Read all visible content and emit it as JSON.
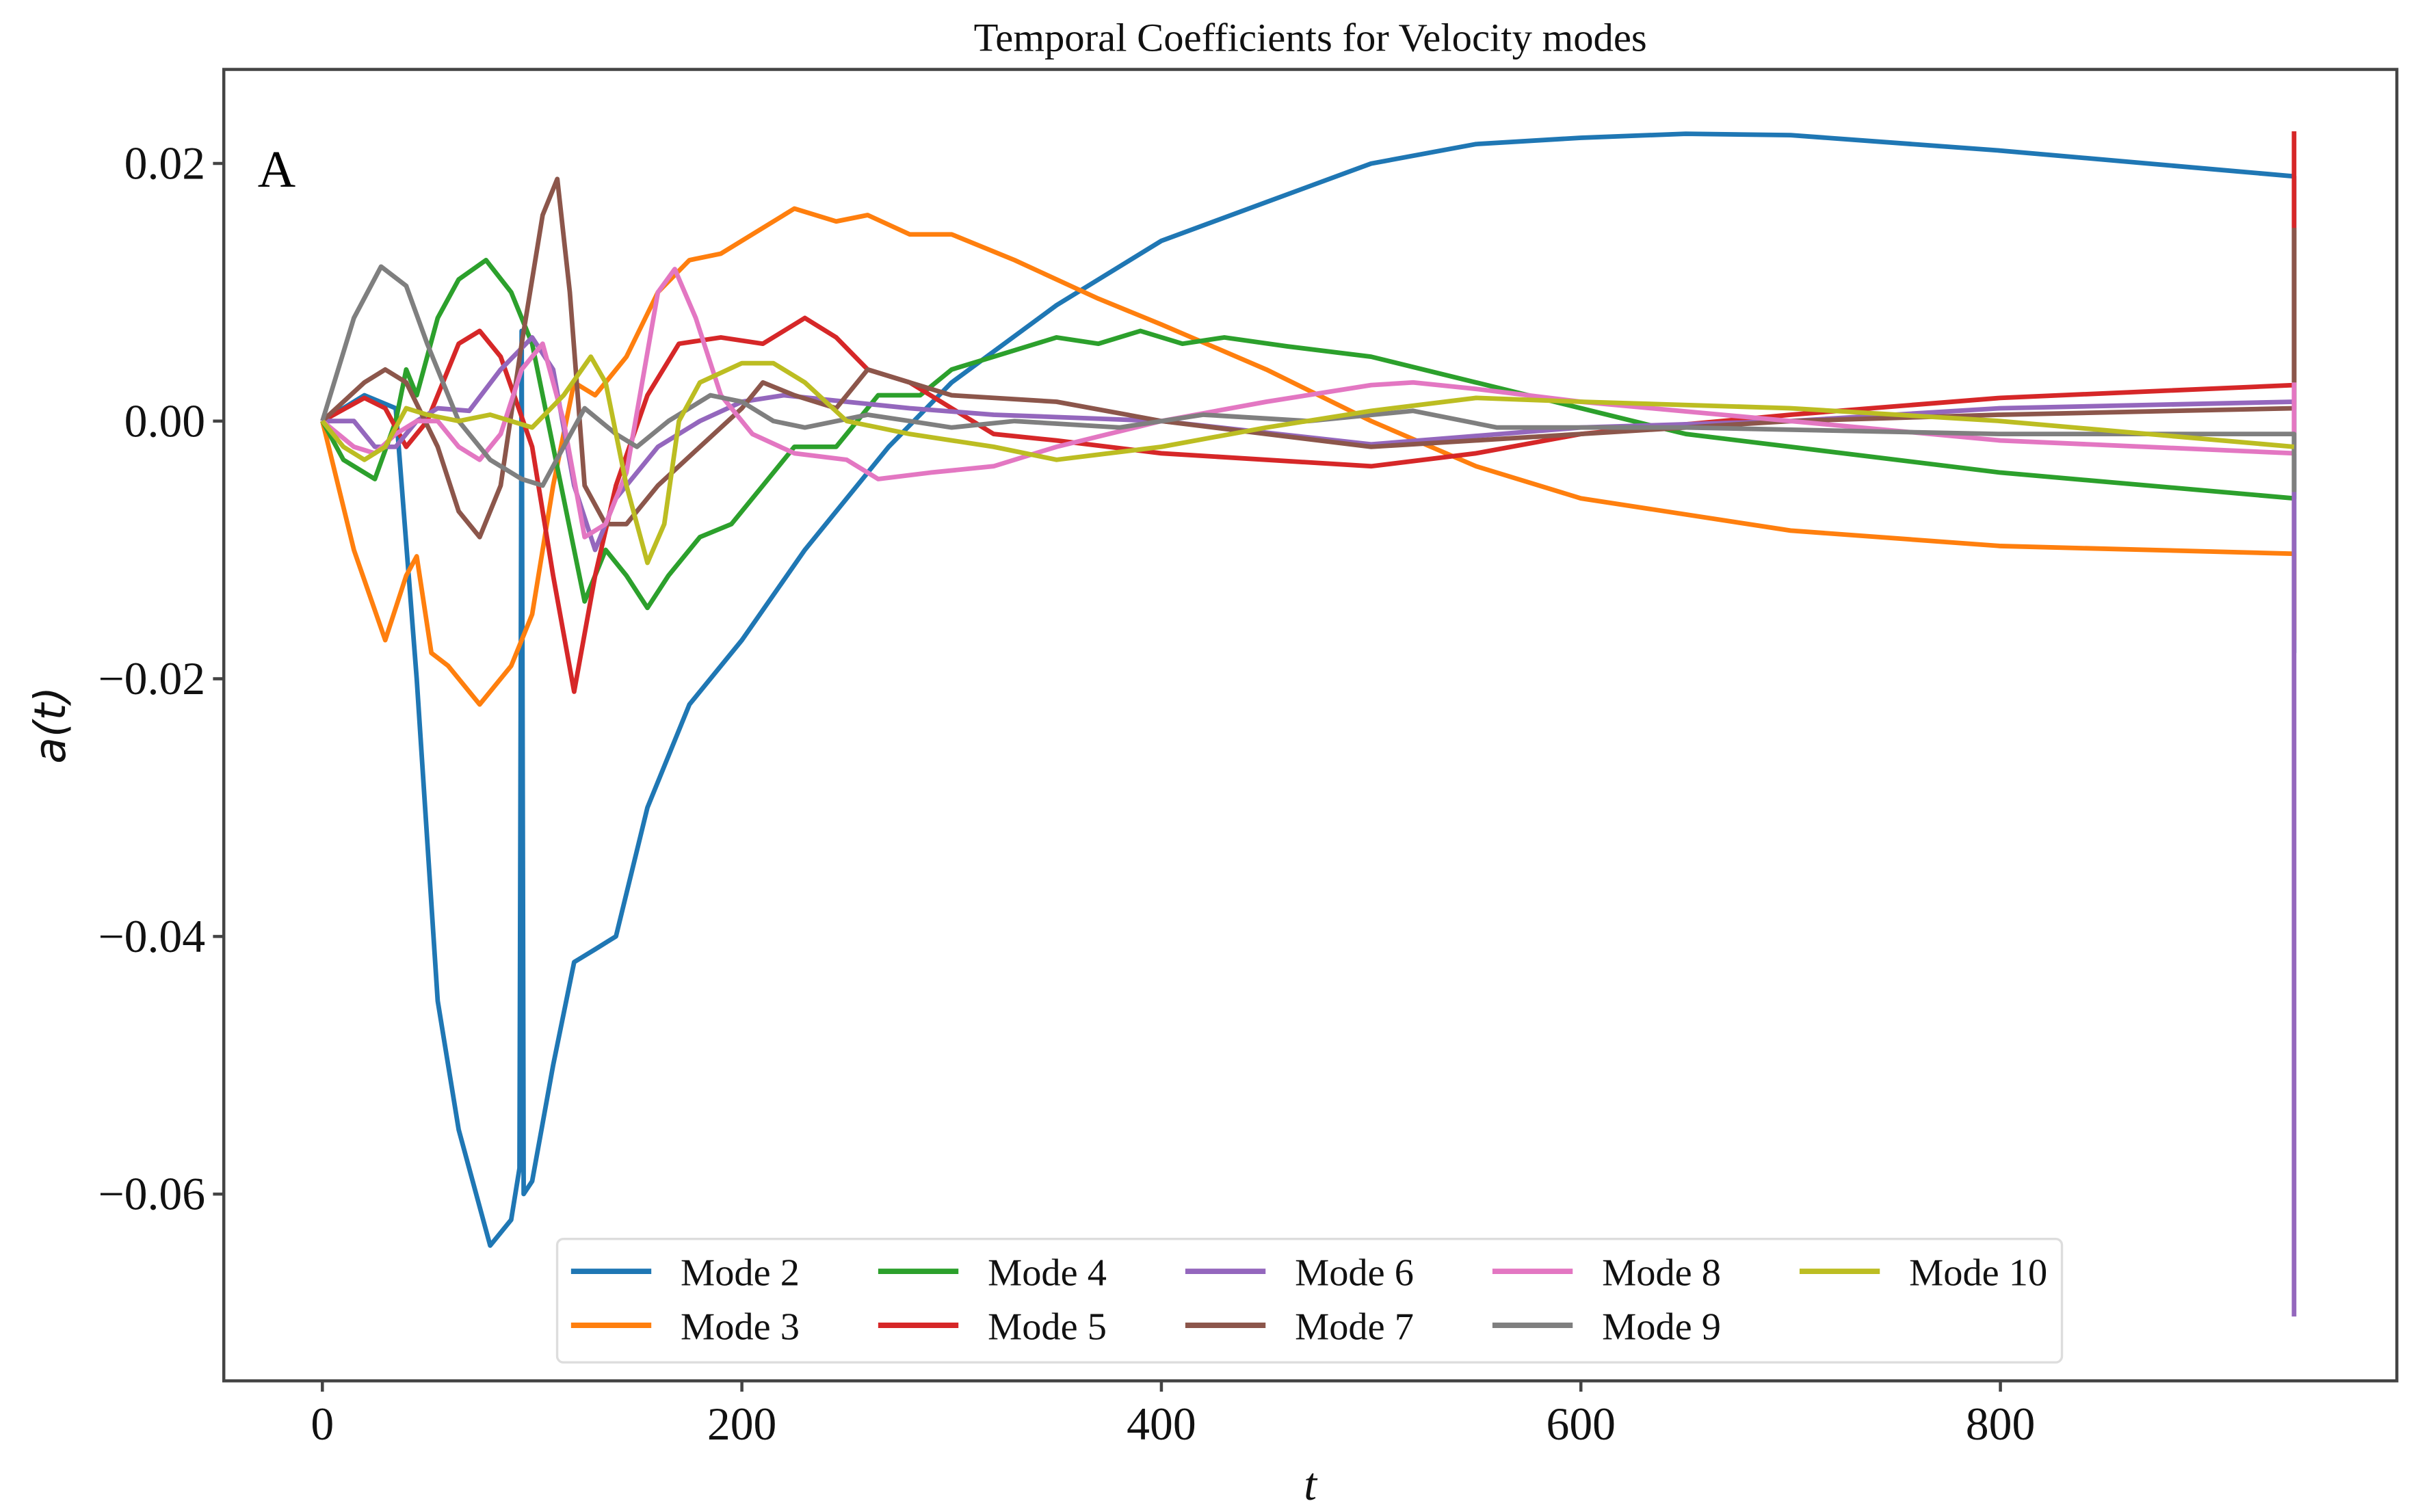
{
  "chart_data": {
    "type": "line",
    "title": "Temporal Coefficients for Velocity modes",
    "xlabel": "t",
    "ylabel": "a(t)",
    "annotation": "A",
    "xlim": [
      -47,
      989
    ],
    "ylim": [
      -0.0745,
      0.0273
    ],
    "xticks": [
      0,
      200,
      400,
      600,
      800
    ],
    "xtick_labels": [
      "0",
      "200",
      "400",
      "600",
      "800"
    ],
    "yticks": [
      0.02,
      0.0,
      -0.02,
      -0.04,
      -0.06
    ],
    "ytick_labels": [
      "0.02",
      "0.00",
      "−0.02",
      "−0.04",
      "−0.06"
    ],
    "grid": false,
    "legend_placement": "lower-center",
    "series": [
      {
        "name": "Mode 2",
        "color": "#1f77b4",
        "points": [
          [
            0,
            0
          ],
          [
            20,
            0.002
          ],
          [
            35,
            0.001
          ],
          [
            45,
            -0.02
          ],
          [
            55,
            -0.045
          ],
          [
            65,
            -0.055
          ],
          [
            80,
            -0.064
          ],
          [
            90,
            -0.062
          ],
          [
            94,
            -0.058
          ],
          [
            95,
            0.007
          ],
          [
            96,
            -0.06
          ],
          [
            100,
            -0.059
          ],
          [
            110,
            -0.05
          ],
          [
            120,
            -0.042
          ],
          [
            130,
            -0.041
          ],
          [
            140,
            -0.04
          ],
          [
            155,
            -0.03
          ],
          [
            175,
            -0.022
          ],
          [
            200,
            -0.017
          ],
          [
            230,
            -0.01
          ],
          [
            270,
            -0.002
          ],
          [
            300,
            0.003
          ],
          [
            350,
            0.009
          ],
          [
            400,
            0.014
          ],
          [
            450,
            0.017
          ],
          [
            500,
            0.02
          ],
          [
            550,
            0.0215
          ],
          [
            600,
            0.022
          ],
          [
            650,
            0.0223
          ],
          [
            700,
            0.0222
          ],
          [
            800,
            0.021
          ],
          [
            940,
            0.019
          ],
          [
            940,
            -0.018
          ]
        ]
      },
      {
        "name": "Mode 3",
        "color": "#ff7f0e",
        "points": [
          [
            0,
            0
          ],
          [
            15,
            -0.01
          ],
          [
            30,
            -0.017
          ],
          [
            40,
            -0.012
          ],
          [
            45,
            -0.0105
          ],
          [
            52,
            -0.018
          ],
          [
            60,
            -0.019
          ],
          [
            75,
            -0.022
          ],
          [
            90,
            -0.019
          ],
          [
            100,
            -0.015
          ],
          [
            110,
            -0.005
          ],
          [
            120,
            0.003
          ],
          [
            130,
            0.002
          ],
          [
            145,
            0.005
          ],
          [
            160,
            0.01
          ],
          [
            175,
            0.0125
          ],
          [
            190,
            0.013
          ],
          [
            210,
            0.015
          ],
          [
            225,
            0.0165
          ],
          [
            245,
            0.0155
          ],
          [
            260,
            0.016
          ],
          [
            280,
            0.0145
          ],
          [
            300,
            0.0145
          ],
          [
            330,
            0.0125
          ],
          [
            370,
            0.0095
          ],
          [
            400,
            0.0075
          ],
          [
            450,
            0.004
          ],
          [
            500,
            0
          ],
          [
            550,
            -0.0035
          ],
          [
            600,
            -0.006
          ],
          [
            700,
            -0.0085
          ],
          [
            800,
            -0.0097
          ],
          [
            940,
            -0.0103
          ],
          [
            940,
            -0.017
          ]
        ]
      },
      {
        "name": "Mode 4",
        "color": "#2ca02c",
        "points": [
          [
            0,
            0
          ],
          [
            10,
            -0.003
          ],
          [
            25,
            -0.0045
          ],
          [
            35,
            0
          ],
          [
            40,
            0.004
          ],
          [
            45,
            0.002
          ],
          [
            55,
            0.008
          ],
          [
            65,
            0.011
          ],
          [
            78,
            0.0125
          ],
          [
            90,
            0.01
          ],
          [
            100,
            0.006
          ],
          [
            110,
            -0.002
          ],
          [
            125,
            -0.014
          ],
          [
            135,
            -0.01
          ],
          [
            145,
            -0.012
          ],
          [
            155,
            -0.0145
          ],
          [
            165,
            -0.012
          ],
          [
            180,
            -0.009
          ],
          [
            195,
            -0.008
          ],
          [
            210,
            -0.005
          ],
          [
            225,
            -0.002
          ],
          [
            245,
            -0.002
          ],
          [
            265,
            0.002
          ],
          [
            285,
            0.002
          ],
          [
            300,
            0.004
          ],
          [
            320,
            0.005
          ],
          [
            350,
            0.0065
          ],
          [
            370,
            0.006
          ],
          [
            390,
            0.007
          ],
          [
            410,
            0.006
          ],
          [
            430,
            0.0065
          ],
          [
            460,
            0.0058
          ],
          [
            500,
            0.005
          ],
          [
            550,
            0.003
          ],
          [
            600,
            0.001
          ],
          [
            650,
            -0.001
          ],
          [
            700,
            -0.002
          ],
          [
            800,
            -0.004
          ],
          [
            940,
            -0.006
          ],
          [
            940,
            0.0148
          ]
        ]
      },
      {
        "name": "Mode 5",
        "color": "#d62728",
        "points": [
          [
            0,
            0
          ],
          [
            20,
            0.0018
          ],
          [
            30,
            0.001
          ],
          [
            40,
            -0.002
          ],
          [
            50,
            0
          ],
          [
            65,
            0.006
          ],
          [
            75,
            0.007
          ],
          [
            85,
            0.005
          ],
          [
            100,
            -0.002
          ],
          [
            110,
            -0.012
          ],
          [
            120,
            -0.021
          ],
          [
            130,
            -0.012
          ],
          [
            140,
            -0.005
          ],
          [
            155,
            0.002
          ],
          [
            170,
            0.006
          ],
          [
            190,
            0.0065
          ],
          [
            210,
            0.006
          ],
          [
            230,
            0.008
          ],
          [
            245,
            0.0065
          ],
          [
            260,
            0.004
          ],
          [
            280,
            0.003
          ],
          [
            300,
            0.001
          ],
          [
            320,
            -0.001
          ],
          [
            350,
            -0.0015
          ],
          [
            400,
            -0.0025
          ],
          [
            500,
            -0.0035
          ],
          [
            550,
            -0.0025
          ],
          [
            600,
            -0.001
          ],
          [
            700,
            0.0005
          ],
          [
            800,
            0.0018
          ],
          [
            940,
            0.0028
          ],
          [
            940,
            0.0225
          ]
        ]
      },
      {
        "name": "Mode 6",
        "color": "#9467bd",
        "points": [
          [
            0,
            0
          ],
          [
            15,
            0
          ],
          [
            25,
            -0.002
          ],
          [
            35,
            -0.002
          ],
          [
            45,
            0
          ],
          [
            55,
            0.001
          ],
          [
            70,
            0.0008
          ],
          [
            85,
            0.004
          ],
          [
            100,
            0.0065
          ],
          [
            110,
            0.004
          ],
          [
            120,
            -0.005
          ],
          [
            130,
            -0.01
          ],
          [
            140,
            -0.006
          ],
          [
            160,
            -0.002
          ],
          [
            180,
            0
          ],
          [
            200,
            0.0015
          ],
          [
            220,
            0.002
          ],
          [
            250,
            0.0015
          ],
          [
            280,
            0.001
          ],
          [
            320,
            0.0005
          ],
          [
            400,
            0
          ],
          [
            500,
            -0.0018
          ],
          [
            600,
            -0.0005
          ],
          [
            700,
            0
          ],
          [
            800,
            0.001
          ],
          [
            940,
            0.0015
          ],
          [
            940,
            -0.0695
          ]
        ]
      },
      {
        "name": "Mode 7",
        "color": "#8c564b",
        "points": [
          [
            0,
            0
          ],
          [
            20,
            0.003
          ],
          [
            30,
            0.004
          ],
          [
            40,
            0.003
          ],
          [
            55,
            -0.002
          ],
          [
            65,
            -0.007
          ],
          [
            75,
            -0.009
          ],
          [
            85,
            -0.005
          ],
          [
            95,
            0.006
          ],
          [
            105,
            0.016
          ],
          [
            112,
            0.0188
          ],
          [
            118,
            0.01
          ],
          [
            125,
            -0.005
          ],
          [
            135,
            -0.008
          ],
          [
            145,
            -0.008
          ],
          [
            160,
            -0.005
          ],
          [
            180,
            -0.002
          ],
          [
            200,
            0.001
          ],
          [
            210,
            0.003
          ],
          [
            225,
            0.002
          ],
          [
            245,
            0.001
          ],
          [
            260,
            0.004
          ],
          [
            280,
            0.003
          ],
          [
            300,
            0.002
          ],
          [
            350,
            0.0015
          ],
          [
            400,
            0
          ],
          [
            450,
            -0.001
          ],
          [
            500,
            -0.002
          ],
          [
            600,
            -0.001
          ],
          [
            700,
            0
          ],
          [
            800,
            0.0005
          ],
          [
            940,
            0.001
          ],
          [
            940,
            0.015
          ]
        ]
      },
      {
        "name": "Mode 8",
        "color": "#e377c2",
        "points": [
          [
            0,
            0
          ],
          [
            15,
            -0.002
          ],
          [
            25,
            -0.0025
          ],
          [
            35,
            -0.001
          ],
          [
            45,
            0
          ],
          [
            55,
            0
          ],
          [
            65,
            -0.002
          ],
          [
            75,
            -0.003
          ],
          [
            85,
            -0.001
          ],
          [
            95,
            0.004
          ],
          [
            105,
            0.006
          ],
          [
            115,
            0
          ],
          [
            125,
            -0.009
          ],
          [
            135,
            -0.008
          ],
          [
            145,
            -0.004
          ],
          [
            160,
            0.01
          ],
          [
            168,
            0.0118
          ],
          [
            178,
            0.008
          ],
          [
            190,
            0.002
          ],
          [
            205,
            -0.001
          ],
          [
            225,
            -0.0025
          ],
          [
            250,
            -0.003
          ],
          [
            265,
            -0.0045
          ],
          [
            290,
            -0.004
          ],
          [
            320,
            -0.0035
          ],
          [
            350,
            -0.002
          ],
          [
            400,
            0
          ],
          [
            450,
            0.0015
          ],
          [
            500,
            0.0028
          ],
          [
            520,
            0.003
          ],
          [
            550,
            0.0025
          ],
          [
            600,
            0.0015
          ],
          [
            700,
            0
          ],
          [
            800,
            -0.0015
          ],
          [
            940,
            -0.0025
          ],
          [
            940,
            0.003
          ]
        ]
      },
      {
        "name": "Mode 9",
        "color": "#7f7f7f",
        "points": [
          [
            0,
            0
          ],
          [
            15,
            0.008
          ],
          [
            28,
            0.012
          ],
          [
            40,
            0.0105
          ],
          [
            50,
            0.006
          ],
          [
            65,
            0
          ],
          [
            80,
            -0.003
          ],
          [
            95,
            -0.0045
          ],
          [
            105,
            -0.005
          ],
          [
            115,
            -0.002
          ],
          [
            125,
            0.001
          ],
          [
            140,
            -0.001
          ],
          [
            150,
            -0.002
          ],
          [
            165,
            0
          ],
          [
            185,
            0.002
          ],
          [
            200,
            0.0015
          ],
          [
            215,
            0
          ],
          [
            230,
            -0.0005
          ],
          [
            260,
            0.0005
          ],
          [
            280,
            0
          ],
          [
            300,
            -0.0005
          ],
          [
            330,
            0
          ],
          [
            380,
            -0.0005
          ],
          [
            420,
            0.0005
          ],
          [
            470,
            0
          ],
          [
            520,
            0.0008
          ],
          [
            560,
            -0.0005
          ],
          [
            650,
            -0.0005
          ],
          [
            800,
            -0.001
          ],
          [
            940,
            -0.001
          ],
          [
            940,
            -0.0055
          ]
        ]
      },
      {
        "name": "Mode 10",
        "color": "#bcbd22",
        "points": [
          [
            0,
            0
          ],
          [
            10,
            -0.002
          ],
          [
            20,
            -0.003
          ],
          [
            30,
            -0.002
          ],
          [
            40,
            0.001
          ],
          [
            50,
            0.0005
          ],
          [
            65,
            0
          ],
          [
            80,
            0.0005
          ],
          [
            100,
            -0.0005
          ],
          [
            115,
            0.002
          ],
          [
            128,
            0.005
          ],
          [
            135,
            0.003
          ],
          [
            145,
            -0.005
          ],
          [
            155,
            -0.011
          ],
          [
            163,
            -0.008
          ],
          [
            170,
            0
          ],
          [
            180,
            0.003
          ],
          [
            200,
            0.0045
          ],
          [
            215,
            0.0045
          ],
          [
            230,
            0.003
          ],
          [
            250,
            0
          ],
          [
            280,
            -0.001
          ],
          [
            320,
            -0.002
          ],
          [
            350,
            -0.003
          ],
          [
            400,
            -0.002
          ],
          [
            450,
            -0.0005
          ],
          [
            500,
            0.0008
          ],
          [
            550,
            0.0018
          ],
          [
            600,
            0.0015
          ],
          [
            700,
            0.001
          ],
          [
            800,
            0
          ],
          [
            940,
            -0.002
          ]
        ]
      }
    ]
  }
}
